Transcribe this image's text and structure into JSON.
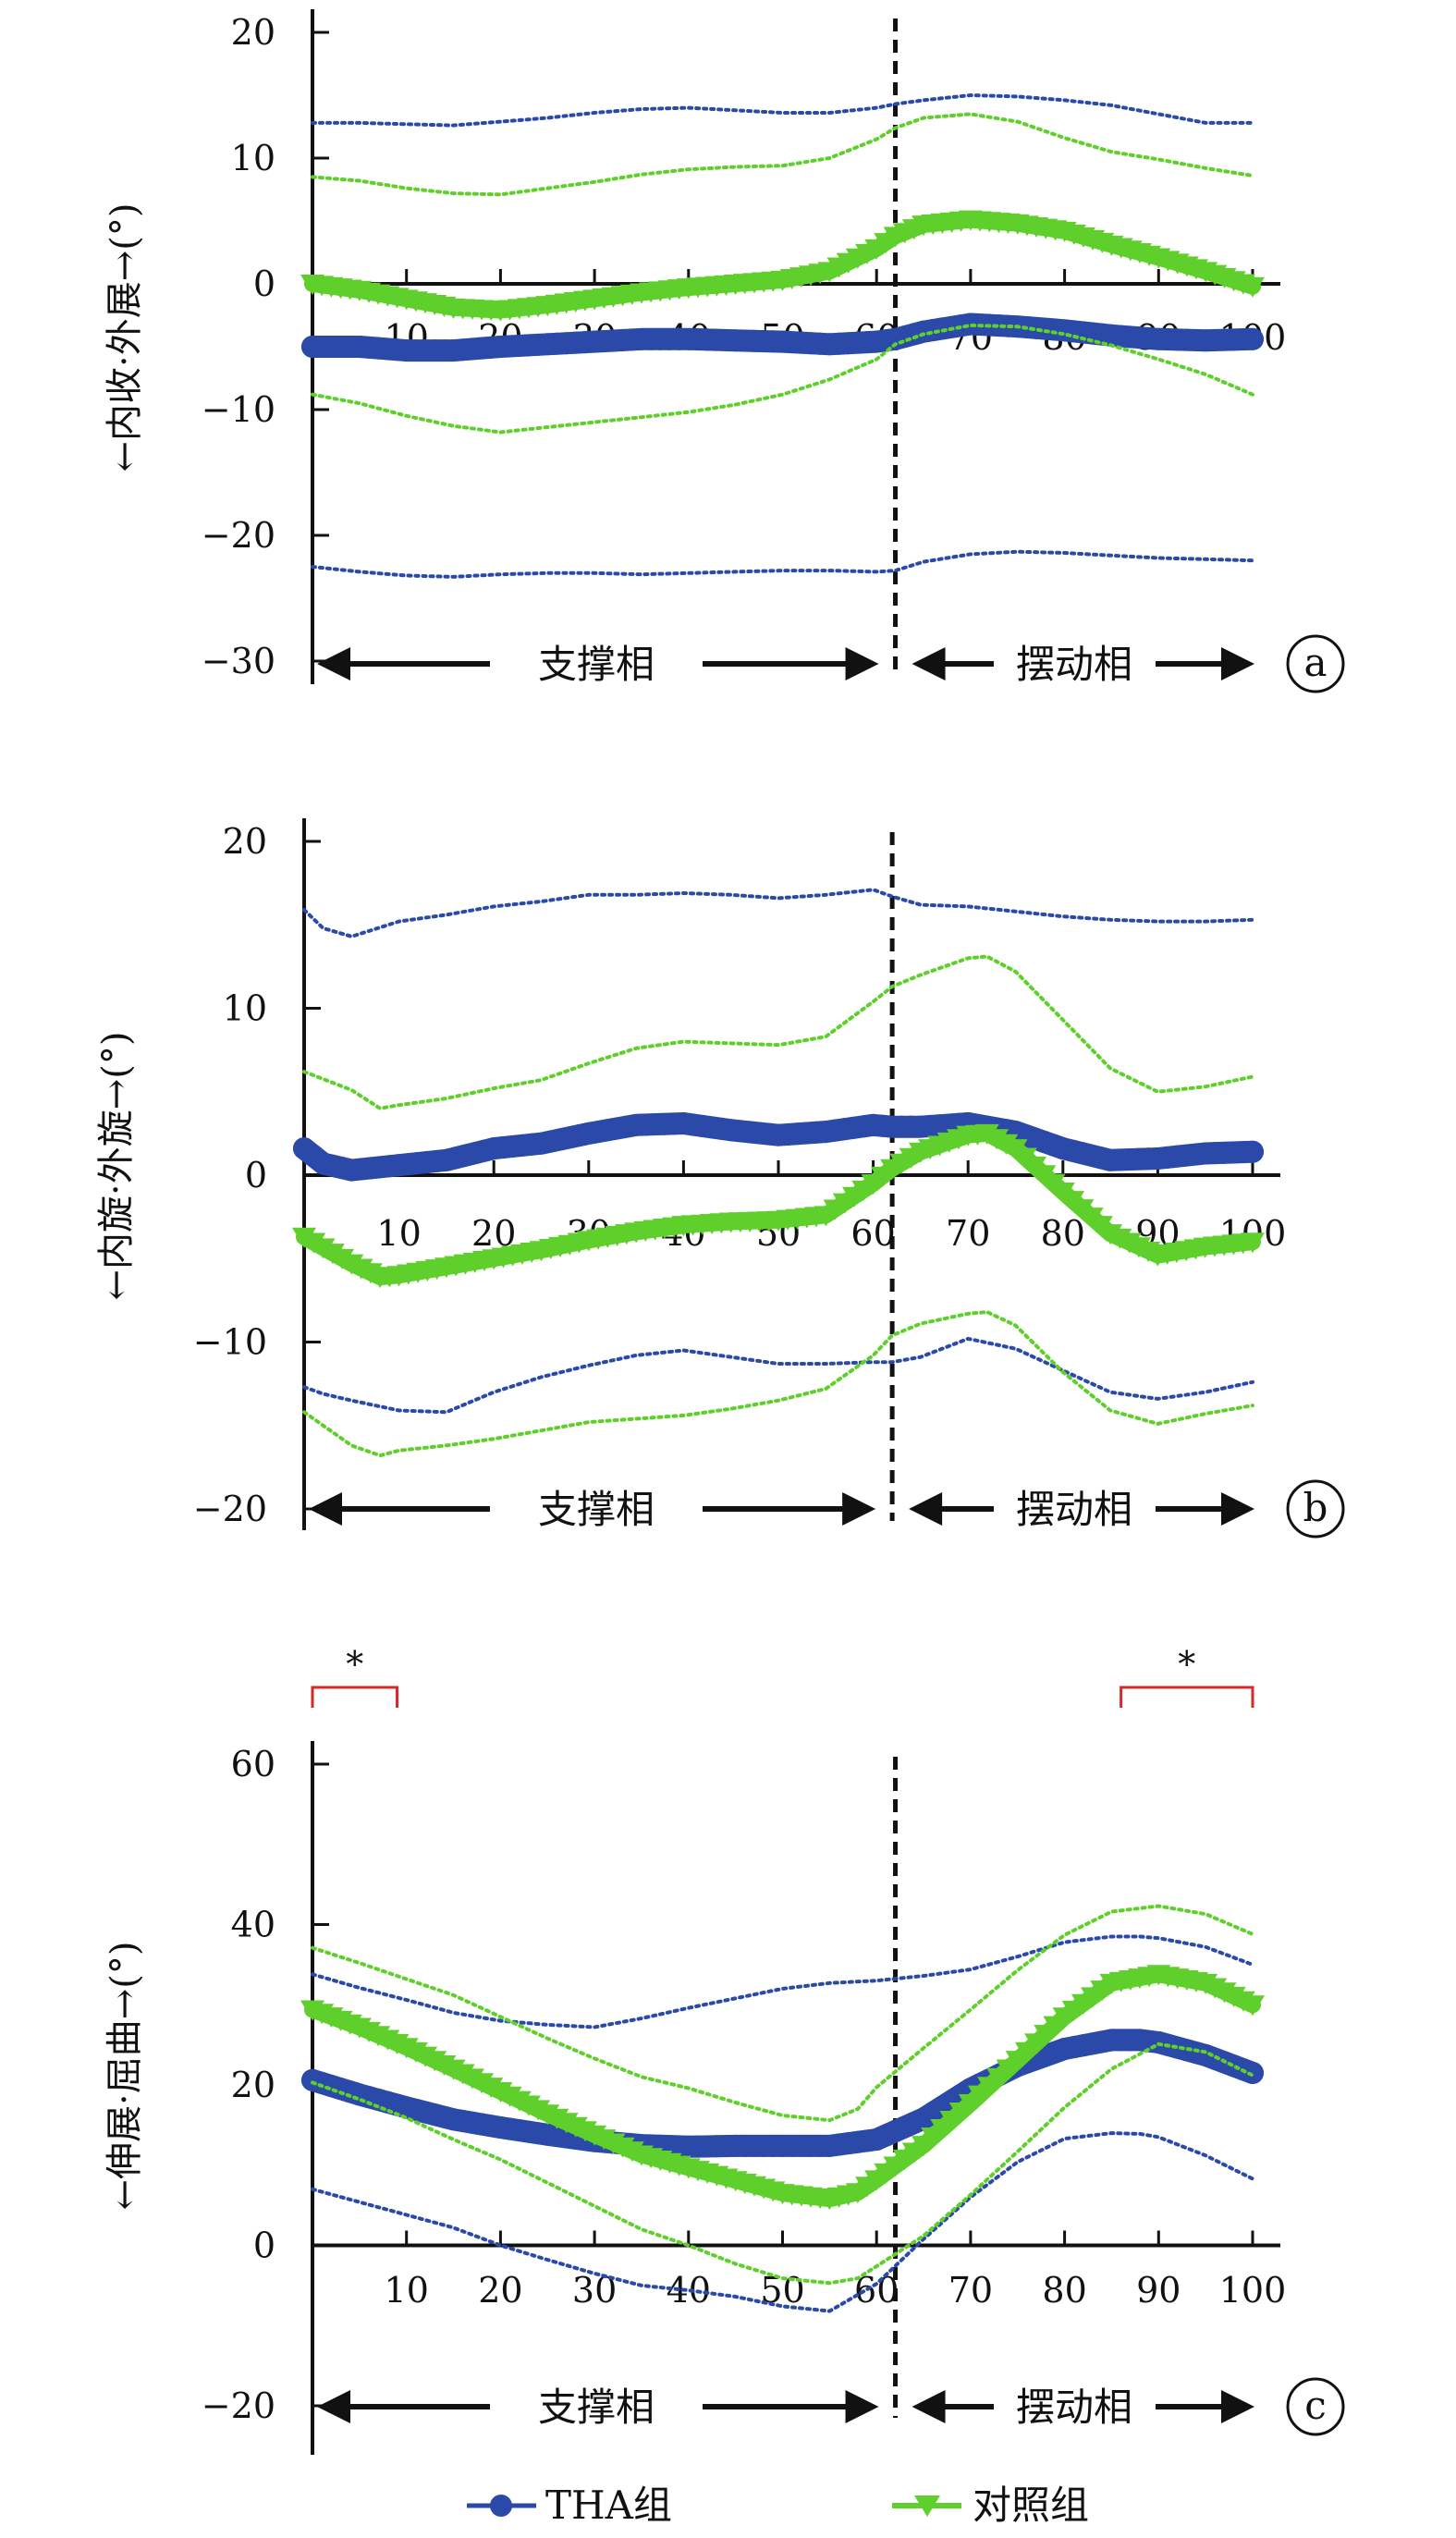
{
  "chart_data": [
    {
      "panel_label": "a",
      "type": "line",
      "ylabel": "←内收·外展→(°)",
      "xlim": [
        0,
        100
      ],
      "ylim": [
        -30,
        20
      ],
      "y_ticks": [
        "20",
        "10",
        "0",
        "−10",
        "−20",
        "−30"
      ],
      "x_ticks": [
        "10",
        "20",
        "30",
        "40",
        "50",
        "60",
        "70",
        "80",
        "90",
        "100"
      ],
      "phase_divider_x": 62,
      "stance_label": "支撑相",
      "swing_label": "摆动相",
      "series": [
        {
          "name": "THA组",
          "color": "#2a49a8",
          "marker": "circle",
          "x": [
            0,
            5,
            10,
            15,
            20,
            25,
            30,
            35,
            40,
            45,
            50,
            55,
            60,
            62,
            65,
            70,
            75,
            80,
            85,
            90,
            95,
            100
          ],
          "values": [
            -5,
            -5,
            -5.3,
            -5.3,
            -5,
            -4.8,
            -4.6,
            -4.4,
            -4.4,
            -4.5,
            -4.6,
            -4.8,
            -4.6,
            -4.4,
            -3.8,
            -3.2,
            -3.4,
            -3.7,
            -4.1,
            -4.4,
            -4.5,
            -4.4
          ],
          "upper": [
            12.8,
            12.8,
            12.7,
            12.6,
            12.9,
            13.2,
            13.6,
            13.9,
            14,
            13.8,
            13.6,
            13.6,
            14,
            14.3,
            14.6,
            15,
            14.9,
            14.6,
            14.2,
            13.5,
            12.8,
            12.8
          ],
          "lower": [
            -22.5,
            -22.9,
            -23.2,
            -23.3,
            -23.1,
            -23,
            -23,
            -23.1,
            -23,
            -22.9,
            -22.8,
            -22.8,
            -22.9,
            -22.8,
            -22.1,
            -21.5,
            -21.3,
            -21.4,
            -21.6,
            -21.8,
            -21.9,
            -22
          ]
        },
        {
          "name": "对照组",
          "color": "#5fcf2b",
          "marker": "triangle-down",
          "x": [
            0,
            5,
            10,
            15,
            20,
            25,
            30,
            35,
            40,
            45,
            50,
            55,
            60,
            62,
            65,
            70,
            75,
            80,
            85,
            90,
            95,
            100
          ],
          "values": [
            0,
            -0.5,
            -1.2,
            -1.9,
            -2.1,
            -1.7,
            -1.2,
            -0.7,
            -0.3,
            0,
            0.3,
            1,
            2.8,
            3.8,
            4.7,
            5.1,
            4.8,
            4.2,
            3.1,
            2.1,
            1,
            -0.2
          ],
          "upper": [
            8.5,
            8.2,
            7.6,
            7.2,
            7.1,
            7.6,
            8.1,
            8.7,
            9.1,
            9.3,
            9.4,
            10,
            11.5,
            12.4,
            13.2,
            13.5,
            12.9,
            11.6,
            10.5,
            9.9,
            9.2,
            8.6
          ],
          "lower": [
            -8.8,
            -9.5,
            -10.5,
            -11.3,
            -11.8,
            -11.4,
            -11,
            -10.6,
            -10.2,
            -9.6,
            -8.8,
            -7.6,
            -6,
            -4.8,
            -4,
            -3.3,
            -3.4,
            -4,
            -4.9,
            -6,
            -7.2,
            -8.8
          ]
        }
      ]
    },
    {
      "panel_label": "b",
      "type": "line",
      "ylabel": "←内旋·外旋→(°)",
      "xlim": [
        0,
        100
      ],
      "ylim": [
        -20,
        20
      ],
      "y_ticks": [
        "20",
        "10",
        "0",
        "−10",
        "−20"
      ],
      "x_ticks": [
        "10",
        "20",
        "30",
        "40",
        "50",
        "60",
        "70",
        "80",
        "90",
        "100"
      ],
      "phase_divider_x": 62,
      "stance_label": "支撑相",
      "swing_label": "摆动相",
      "series": [
        {
          "name": "THA组",
          "color": "#2a49a8",
          "marker": "circle",
          "x": [
            0,
            2,
            5,
            10,
            15,
            20,
            25,
            30,
            35,
            40,
            45,
            50,
            55,
            60,
            62,
            65,
            70,
            75,
            80,
            85,
            90,
            95,
            100
          ],
          "values": [
            1.6,
            0.7,
            0.3,
            0.6,
            0.9,
            1.6,
            1.9,
            2.5,
            3,
            3.1,
            2.7,
            2.4,
            2.6,
            3,
            2.9,
            2.9,
            3.1,
            2.6,
            1.6,
            0.9,
            1,
            1.3,
            1.4
          ],
          "upper": [
            15.9,
            14.8,
            14.3,
            15.2,
            15.6,
            16.1,
            16.4,
            16.8,
            16.8,
            16.9,
            16.8,
            16.6,
            16.8,
            17.1,
            16.7,
            16.2,
            16.1,
            15.8,
            15.5,
            15.3,
            15.2,
            15.2,
            15.3
          ],
          "lower": [
            -12.7,
            -13.1,
            -13.5,
            -14.1,
            -14.2,
            -13,
            -12.1,
            -11.4,
            -10.8,
            -10.5,
            -10.9,
            -11.3,
            -11.3,
            -11.2,
            -11.2,
            -10.9,
            -9.8,
            -10.4,
            -11.7,
            -13,
            -13.4,
            -13,
            -12.4
          ]
        },
        {
          "name": "对照组",
          "color": "#5fcf2b",
          "marker": "triangle-down",
          "x": [
            0,
            5,
            8,
            10,
            15,
            20,
            25,
            30,
            35,
            40,
            45,
            50,
            55,
            60,
            62,
            65,
            70,
            72,
            75,
            80,
            85,
            90,
            95,
            100
          ],
          "values": [
            -3.7,
            -5.3,
            -6.1,
            -6,
            -5.5,
            -5,
            -4.5,
            -3.9,
            -3.4,
            -3,
            -2.8,
            -2.7,
            -2.4,
            -0.5,
            0.4,
            1.4,
            2.4,
            2.5,
            1.6,
            -1,
            -3.5,
            -4.8,
            -4.3,
            -4
          ],
          "upper": [
            6.2,
            5.1,
            4,
            4.2,
            4.6,
            5.2,
            5.7,
            6.7,
            7.6,
            8,
            7.9,
            7.8,
            8.3,
            10.4,
            11.3,
            12,
            13,
            13.1,
            12.2,
            9.3,
            6.4,
            5,
            5.3,
            5.9
          ],
          "lower": [
            -14.2,
            -16.2,
            -16.8,
            -16.5,
            -16.2,
            -15.8,
            -15.3,
            -14.8,
            -14.6,
            -14.4,
            -14,
            -13.5,
            -12.8,
            -10.8,
            -9.6,
            -8.9,
            -8.3,
            -8.2,
            -9,
            -11.8,
            -14.1,
            -14.9,
            -14.3,
            -13.8
          ]
        }
      ]
    },
    {
      "panel_label": "c",
      "type": "line",
      "ylabel": "←伸展·屈曲→(°)",
      "xlim": [
        0,
        100
      ],
      "ylim": [
        -20,
        60
      ],
      "y_ticks": [
        "60",
        "40",
        "20",
        "0",
        "−20"
      ],
      "x_ticks": [
        "10",
        "20",
        "30",
        "40",
        "50",
        "60",
        "70",
        "80",
        "90",
        "100"
      ],
      "phase_divider_x": 62,
      "stance_label": "支撑相",
      "swing_label": "摆动相",
      "significance": [
        {
          "x_start": 0,
          "x_end": 9,
          "label": "*"
        },
        {
          "x_start": 86,
          "x_end": 100,
          "label": "*"
        }
      ],
      "series": [
        {
          "name": "THA组",
          "color": "#2a49a8",
          "marker": "circle",
          "x": [
            0,
            5,
            10,
            15,
            20,
            25,
            30,
            35,
            40,
            45,
            50,
            55,
            60,
            65,
            70,
            75,
            80,
            85,
            88,
            90,
            95,
            100
          ],
          "values": [
            20.6,
            18.8,
            17.2,
            15.7,
            14.7,
            13.8,
            13,
            12.5,
            12.3,
            12.4,
            12.4,
            12.4,
            13.2,
            15.8,
            19.5,
            22.4,
            24.5,
            25.6,
            25.6,
            25.3,
            23.7,
            21.5
          ],
          "upper": [
            33.8,
            32.1,
            30.6,
            29,
            28,
            27.5,
            27.2,
            28.3,
            29.6,
            30.8,
            32,
            32.7,
            33,
            33.6,
            34.4,
            36,
            37.8,
            38.5,
            38.5,
            38.3,
            37.2,
            35
          ],
          "lower": [
            7,
            5.4,
            3.8,
            2.2,
            0,
            -1.8,
            -3.5,
            -5,
            -5.6,
            -6.4,
            -7.6,
            -8.2,
            -4.8,
            0.8,
            6,
            10.4,
            13.3,
            14,
            13.9,
            13.5,
            11.2,
            8.3
          ]
        },
        {
          "name": "对照组",
          "color": "#5fcf2b",
          "marker": "triangle-down",
          "x": [
            0,
            5,
            10,
            15,
            20,
            25,
            30,
            35,
            40,
            45,
            50,
            55,
            58,
            60,
            65,
            70,
            75,
            80,
            85,
            90,
            95,
            100
          ],
          "values": [
            29.4,
            27.2,
            24.7,
            22,
            19.2,
            16.4,
            13.8,
            11.3,
            9.7,
            8.1,
            6.5,
            5.8,
            6.6,
            8.2,
            12.5,
            17.7,
            23.1,
            28.5,
            32.7,
            33.8,
            32.7,
            30
          ],
          "upper": [
            37.1,
            35.2,
            33.2,
            31.2,
            28.5,
            25.8,
            23.3,
            21,
            19.6,
            17.8,
            16.2,
            15.6,
            17,
            19.7,
            24.6,
            29.4,
            34.3,
            38.7,
            41.6,
            42.3,
            41.3,
            38.8
          ],
          "lower": [
            20.3,
            18.2,
            15.9,
            13.2,
            10.7,
            7.8,
            4.9,
            2,
            0,
            -2.3,
            -4.1,
            -4.7,
            -4.1,
            -2.6,
            1.2,
            6.3,
            11.7,
            17.2,
            22,
            25.1,
            24.1,
            21.2
          ]
        }
      ]
    }
  ],
  "legend": [
    {
      "label": "THA组",
      "color": "#2a49a8",
      "marker": "circle"
    },
    {
      "label": "对照组",
      "color": "#5fcf2b",
      "marker": "triangle-down"
    }
  ]
}
